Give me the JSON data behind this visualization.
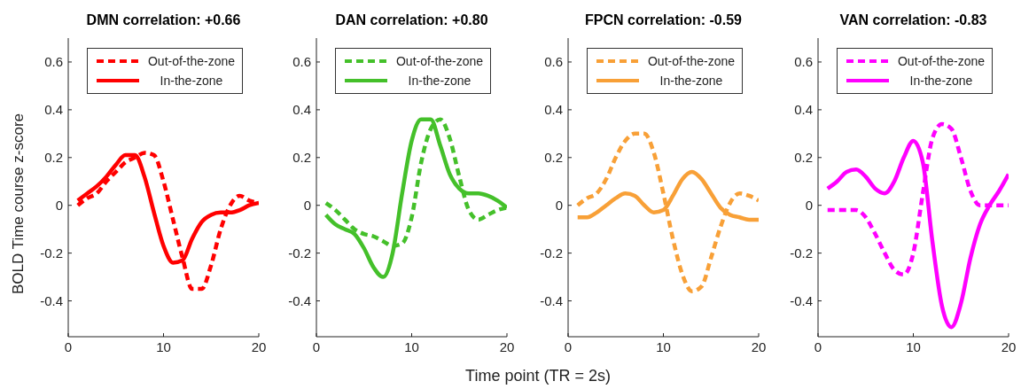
{
  "chart_data": [
    {
      "type": "line",
      "title": "DMN correlation: +0.66",
      "ylabel": "BOLD Time course z-score",
      "x": [
        1,
        2,
        3,
        4,
        5,
        6,
        7,
        8,
        9,
        10,
        11,
        12,
        13,
        14,
        15,
        16,
        17,
        18,
        19,
        20
      ],
      "xlim": [
        0,
        20
      ],
      "xticks": [
        0,
        10,
        20
      ],
      "ylim": [
        -0.55,
        0.7
      ],
      "yticks": [
        -0.4,
        -0.2,
        0,
        0.2,
        0.4,
        0.6
      ],
      "grid": false,
      "legend": "top",
      "series": [
        {
          "name": "Out-of-the-zone",
          "color": "#ff0000",
          "line_style": "dashed",
          "values": [
            0.0,
            0.03,
            0.05,
            0.1,
            0.14,
            0.18,
            0.2,
            0.22,
            0.21,
            0.1,
            -0.06,
            -0.22,
            -0.35,
            -0.35,
            -0.25,
            -0.1,
            0.0,
            0.04,
            0.02,
            0.01
          ]
        },
        {
          "name": "In-the-zone",
          "color": "#ff0000",
          "line_style": "solid",
          "values": [
            0.02,
            0.05,
            0.08,
            0.12,
            0.17,
            0.21,
            0.21,
            0.12,
            -0.03,
            -0.17,
            -0.24,
            -0.23,
            -0.14,
            -0.07,
            -0.04,
            -0.03,
            -0.03,
            -0.02,
            0.0,
            0.01
          ]
        }
      ]
    },
    {
      "type": "line",
      "title": "DAN correlation: +0.80",
      "xlabel": "Time point (TR = 2s)",
      "x": [
        1,
        2,
        3,
        4,
        5,
        6,
        7,
        8,
        9,
        10,
        11,
        12,
        13,
        14,
        15,
        16,
        17,
        18,
        19,
        20
      ],
      "xlim": [
        0,
        20
      ],
      "xticks": [
        0,
        10,
        20
      ],
      "ylim": [
        -0.55,
        0.7
      ],
      "yticks": [
        -0.4,
        -0.2,
        0,
        0.2,
        0.4,
        0.6
      ],
      "grid": false,
      "legend": "top",
      "series": [
        {
          "name": "Out-of-the-zone",
          "color": "#44c02a",
          "line_style": "dashed",
          "values": [
            0.01,
            -0.02,
            -0.06,
            -0.1,
            -0.12,
            -0.13,
            -0.15,
            -0.17,
            -0.16,
            -0.05,
            0.18,
            0.32,
            0.36,
            0.28,
            0.12,
            -0.02,
            -0.06,
            -0.04,
            -0.02,
            -0.01
          ]
        },
        {
          "name": "In-the-zone",
          "color": "#44c02a",
          "line_style": "solid",
          "values": [
            -0.04,
            -0.08,
            -0.1,
            -0.12,
            -0.18,
            -0.26,
            -0.3,
            -0.2,
            0.05,
            0.27,
            0.36,
            0.36,
            0.25,
            0.13,
            0.07,
            0.05,
            0.05,
            0.04,
            0.02,
            -0.01
          ]
        }
      ]
    },
    {
      "type": "line",
      "title": "FPCN correlation: -0.59",
      "x": [
        1,
        2,
        3,
        4,
        5,
        6,
        7,
        8,
        9,
        10,
        11,
        12,
        13,
        14,
        15,
        16,
        17,
        18,
        19,
        20
      ],
      "xlim": [
        0,
        20
      ],
      "xticks": [
        0,
        10,
        20
      ],
      "ylim": [
        -0.55,
        0.7
      ],
      "yticks": [
        -0.4,
        -0.2,
        0,
        0.2,
        0.4,
        0.6
      ],
      "grid": false,
      "legend": "top",
      "series": [
        {
          "name": "Out-of-the-zone",
          "color": "#f8a037",
          "line_style": "dashed",
          "values": [
            0.0,
            0.03,
            0.05,
            0.11,
            0.2,
            0.27,
            0.3,
            0.3,
            0.22,
            0.05,
            -0.14,
            -0.29,
            -0.36,
            -0.34,
            -0.22,
            -0.09,
            0.01,
            0.05,
            0.04,
            0.02
          ]
        },
        {
          "name": "In-the-zone",
          "color": "#f8a037",
          "line_style": "solid",
          "values": [
            -0.05,
            -0.05,
            -0.03,
            0.0,
            0.03,
            0.05,
            0.04,
            0.0,
            -0.03,
            -0.02,
            0.04,
            0.11,
            0.14,
            0.11,
            0.05,
            -0.01,
            -0.04,
            -0.05,
            -0.06,
            -0.06
          ]
        }
      ]
    },
    {
      "type": "line",
      "title": "VAN correlation: -0.83",
      "x": [
        1,
        2,
        3,
        4,
        5,
        6,
        7,
        8,
        9,
        10,
        11,
        12,
        13,
        14,
        15,
        16,
        17,
        18,
        19,
        20
      ],
      "xlim": [
        0,
        20
      ],
      "xticks": [
        0,
        10,
        20
      ],
      "ylim": [
        -0.55,
        0.7
      ],
      "yticks": [
        -0.4,
        -0.2,
        0,
        0.2,
        0.4,
        0.6
      ],
      "grid": false,
      "legend": "top",
      "series": [
        {
          "name": "Out-of-the-zone",
          "color": "#ff00ff",
          "line_style": "dashed",
          "values": [
            -0.02,
            -0.02,
            -0.02,
            -0.02,
            -0.05,
            -0.12,
            -0.2,
            -0.27,
            -0.29,
            -0.2,
            0.05,
            0.28,
            0.34,
            0.32,
            0.2,
            0.06,
            0.0,
            0.0,
            0.0,
            0.0
          ]
        },
        {
          "name": "In-the-zone",
          "color": "#ff00ff",
          "line_style": "solid",
          "values": [
            0.07,
            0.1,
            0.14,
            0.15,
            0.12,
            0.07,
            0.05,
            0.1,
            0.2,
            0.27,
            0.18,
            -0.15,
            -0.42,
            -0.51,
            -0.41,
            -0.22,
            -0.08,
            0.0,
            0.06,
            0.13
          ]
        }
      ]
    }
  ]
}
